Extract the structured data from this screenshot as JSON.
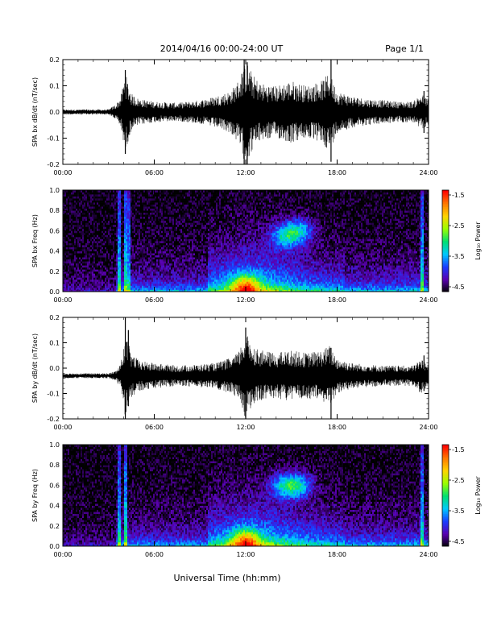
{
  "header": {
    "title": "2014/04/16  00:00-24:00 UT",
    "page": "Page 1/1"
  },
  "xaxis": {
    "label": "Universal Time (hh:mm)",
    "ticks": [
      "00:00",
      "06:00",
      "12:00",
      "18:00",
      "24:00"
    ],
    "range_hours": [
      0,
      24
    ]
  },
  "colorbar": {
    "label": "Log₁₀ Power",
    "ticks": [
      "-1.5",
      "-2.5",
      "-3.5",
      "-4.5"
    ],
    "range": [
      -4.5,
      -1.5
    ],
    "colors": [
      "#000000",
      "#5a00b0",
      "#1a3cff",
      "#00c8ff",
      "#00e070",
      "#9aff00",
      "#ffd400",
      "#ff7800",
      "#ff0000"
    ]
  },
  "chart_data": [
    {
      "type": "line",
      "ylabel": "SPA bx dB/dt (nT/sec)",
      "ylim": [
        -0.2,
        0.2
      ],
      "yticks": [
        "0.2",
        "0.1",
        "0.0",
        "-0.1",
        "-0.2"
      ],
      "xlim_hours": [
        0,
        24
      ],
      "baseline": 0.0,
      "envelope": {
        "hours": [
          0,
          3.0,
          3.5,
          3.8,
          4.1,
          4.5,
          5.0,
          6.0,
          7.5,
          9.0,
          10.0,
          11.0,
          11.5,
          12.0,
          12.5,
          13.0,
          14.0,
          15.0,
          16.0,
          17.0,
          17.5,
          18.0,
          19.0,
          20.0,
          21.0,
          22.0,
          23.0,
          23.5,
          24.0
        ],
        "amplitude": [
          0.01,
          0.01,
          0.03,
          0.06,
          0.15,
          0.07,
          0.05,
          0.04,
          0.035,
          0.045,
          0.06,
          0.08,
          0.12,
          0.2,
          0.14,
          0.11,
          0.1,
          0.12,
          0.1,
          0.12,
          0.15,
          0.08,
          0.06,
          0.05,
          0.045,
          0.04,
          0.04,
          0.07,
          0.05
        ]
      },
      "spikes": [
        {
          "hour": 4.1,
          "min": -0.16,
          "max": 0.16
        },
        {
          "hour": 11.9,
          "min": -0.2,
          "max": 0.2
        },
        {
          "hour": 12.1,
          "min": -0.2,
          "max": 0.19
        },
        {
          "hour": 17.6,
          "min": -0.19,
          "max": 0.2
        },
        {
          "hour": 23.7,
          "min": -0.08,
          "max": 0.08
        }
      ]
    },
    {
      "type": "heatmap",
      "ylabel": "SPA bx Freq (Hz)",
      "ylim": [
        0,
        1.0
      ],
      "yticks": [
        "1.0",
        "0.8",
        "0.6",
        "0.4",
        "0.2",
        "0.0"
      ],
      "xlim_hours": [
        0,
        24
      ],
      "value_range": [
        -4.5,
        -1.5
      ],
      "features": [
        {
          "kind": "vertical_line",
          "hour": 3.7,
          "strength": 0.9
        },
        {
          "kind": "vertical_line",
          "hour": 4.1,
          "strength": 1.0
        },
        {
          "kind": "vertical_line",
          "hour": 4.3,
          "strength": 0.8
        },
        {
          "kind": "vertical_line",
          "hour": 23.6,
          "strength": 0.9
        },
        {
          "kind": "blob",
          "hour": 12.0,
          "freq": 0.05,
          "strength": 1.0
        },
        {
          "kind": "blob",
          "hour": 14.5,
          "freq": 0.55,
          "strength": 0.7
        },
        {
          "kind": "blob",
          "hour": 15.5,
          "freq": 0.6,
          "strength": 0.75
        }
      ]
    },
    {
      "type": "line",
      "ylabel": "SPA by dB/dt (nT/sec)",
      "ylim": [
        -0.2,
        0.2
      ],
      "yticks": [
        "0.2",
        "0.1",
        "0.0",
        "-0.1",
        "-0.2"
      ],
      "xlim_hours": [
        0,
        24
      ],
      "baseline": -0.03,
      "envelope": {
        "hours": [
          0,
          3.0,
          3.5,
          3.8,
          4.1,
          4.5,
          5.0,
          6.0,
          7.5,
          9.0,
          10.0,
          11.0,
          11.5,
          12.0,
          12.5,
          13.0,
          14.0,
          15.0,
          16.0,
          17.0,
          17.5,
          18.0,
          19.0,
          20.0,
          21.0,
          22.0,
          23.0,
          23.5,
          24.0
        ],
        "amplitude": [
          0.01,
          0.01,
          0.02,
          0.05,
          0.17,
          0.09,
          0.06,
          0.05,
          0.04,
          0.045,
          0.05,
          0.07,
          0.09,
          0.17,
          0.12,
          0.1,
          0.09,
          0.1,
          0.09,
          0.1,
          0.12,
          0.07,
          0.05,
          0.045,
          0.04,
          0.04,
          0.04,
          0.07,
          0.04
        ]
      },
      "spikes": [
        {
          "hour": 4.1,
          "min": -0.2,
          "max": 0.2
        },
        {
          "hour": 4.3,
          "min": -0.15,
          "max": 0.15
        },
        {
          "hour": 12.0,
          "min": -0.2,
          "max": 0.16
        },
        {
          "hour": 17.6,
          "min": -0.2,
          "max": 0.08
        },
        {
          "hour": 23.7,
          "min": -0.09,
          "max": 0.05
        }
      ]
    },
    {
      "type": "heatmap",
      "ylabel": "SPA by Freq (Hz)",
      "ylim": [
        0,
        1.0
      ],
      "yticks": [
        "1.0",
        "0.8",
        "0.6",
        "0.4",
        "0.2",
        "0.0"
      ],
      "xlim_hours": [
        0,
        24
      ],
      "value_range": [
        -4.5,
        -1.5
      ],
      "features": [
        {
          "kind": "vertical_line",
          "hour": 3.7,
          "strength": 0.9
        },
        {
          "kind": "vertical_line",
          "hour": 4.1,
          "strength": 1.0
        },
        {
          "kind": "vertical_line",
          "hour": 23.6,
          "strength": 0.9
        },
        {
          "kind": "blob",
          "hour": 12.0,
          "freq": 0.05,
          "strength": 1.0
        },
        {
          "kind": "blob",
          "hour": 14.5,
          "freq": 0.6,
          "strength": 0.7
        },
        {
          "kind": "blob",
          "hour": 15.5,
          "freq": 0.6,
          "strength": 0.75
        }
      ]
    }
  ]
}
